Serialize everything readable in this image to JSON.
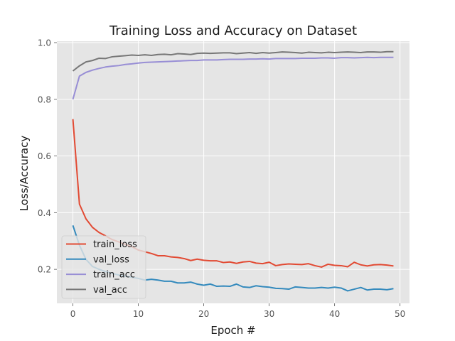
{
  "chart_data": {
    "type": "line",
    "title": "Training Loss and Accuracy on Dataset",
    "xlabel": "Epoch #",
    "ylabel": "Loss/Accuracy",
    "xlim": [
      -2.45,
      51.45
    ],
    "ylim": [
      0.08,
      1.005
    ],
    "xticks": [
      0,
      10,
      20,
      30,
      40,
      50
    ],
    "yticks": [
      0.2,
      0.4,
      0.6,
      0.8,
      1.0
    ],
    "xtick_labels": [
      "0",
      "10",
      "20",
      "30",
      "40",
      "50"
    ],
    "ytick_labels": [
      "0.2",
      "0.4",
      "0.6",
      "0.8",
      "1.0"
    ],
    "grid": true,
    "legend_position": "lower-left",
    "series": [
      {
        "name": "train_loss",
        "color": "#E24A33",
        "values": [
          0.73,
          0.43,
          0.378,
          0.348,
          0.33,
          0.318,
          0.305,
          0.297,
          0.288,
          0.28,
          0.268,
          0.262,
          0.256,
          0.248,
          0.248,
          0.244,
          0.242,
          0.238,
          0.231,
          0.236,
          0.232,
          0.23,
          0.23,
          0.224,
          0.226,
          0.221,
          0.226,
          0.228,
          0.222,
          0.22,
          0.225,
          0.213,
          0.217,
          0.219,
          0.218,
          0.217,
          0.22,
          0.213,
          0.208,
          0.218,
          0.214,
          0.213,
          0.209,
          0.225,
          0.216,
          0.212,
          0.216,
          0.217,
          0.215,
          0.212
        ]
      },
      {
        "name": "val_loss",
        "color": "#348ABD",
        "values": [
          0.355,
          0.285,
          0.235,
          0.21,
          0.2,
          0.192,
          0.186,
          0.18,
          0.176,
          0.172,
          0.168,
          0.162,
          0.165,
          0.162,
          0.158,
          0.158,
          0.152,
          0.152,
          0.155,
          0.148,
          0.144,
          0.148,
          0.14,
          0.141,
          0.14,
          0.148,
          0.138,
          0.136,
          0.142,
          0.139,
          0.137,
          0.133,
          0.132,
          0.13,
          0.138,
          0.136,
          0.134,
          0.134,
          0.136,
          0.134,
          0.137,
          0.134,
          0.124,
          0.13,
          0.136,
          0.127,
          0.13,
          0.13,
          0.128,
          0.132
        ]
      },
      {
        "name": "train_acc",
        "color": "#988ED5",
        "values": [
          0.8,
          0.882,
          0.895,
          0.903,
          0.909,
          0.914,
          0.917,
          0.919,
          0.923,
          0.925,
          0.928,
          0.93,
          0.931,
          0.932,
          0.933,
          0.934,
          0.935,
          0.936,
          0.937,
          0.937,
          0.939,
          0.939,
          0.939,
          0.94,
          0.941,
          0.941,
          0.941,
          0.942,
          0.942,
          0.943,
          0.942,
          0.944,
          0.944,
          0.944,
          0.944,
          0.945,
          0.945,
          0.945,
          0.946,
          0.946,
          0.945,
          0.947,
          0.947,
          0.946,
          0.947,
          0.948,
          0.947,
          0.948,
          0.948,
          0.948
        ]
      },
      {
        "name": "val_acc",
        "color": "#777777",
        "values": [
          0.9,
          0.918,
          0.932,
          0.937,
          0.945,
          0.944,
          0.95,
          0.952,
          0.954,
          0.956,
          0.955,
          0.957,
          0.955,
          0.958,
          0.959,
          0.957,
          0.961,
          0.96,
          0.958,
          0.962,
          0.963,
          0.962,
          0.963,
          0.964,
          0.964,
          0.961,
          0.963,
          0.965,
          0.962,
          0.965,
          0.963,
          0.965,
          0.967,
          0.966,
          0.965,
          0.963,
          0.966,
          0.965,
          0.964,
          0.966,
          0.965,
          0.966,
          0.967,
          0.966,
          0.965,
          0.967,
          0.967,
          0.966,
          0.968,
          0.968
        ]
      }
    ]
  }
}
